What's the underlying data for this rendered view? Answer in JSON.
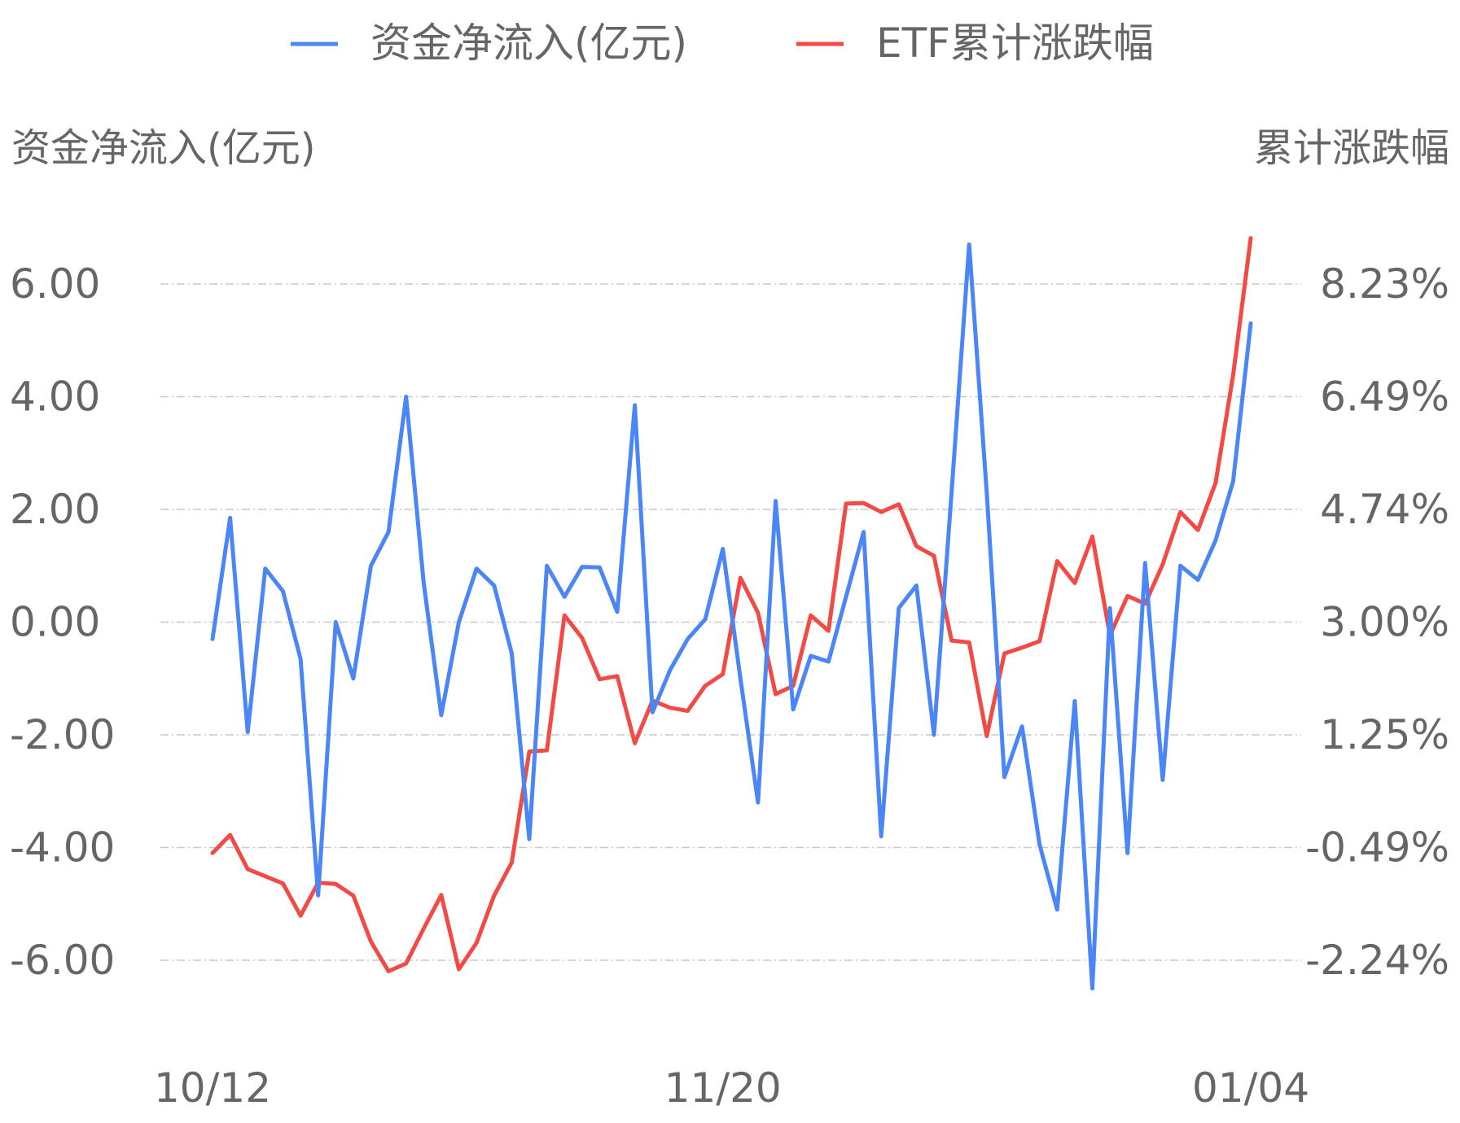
{
  "chart_data": {
    "type": "line",
    "legend_position": "top-center",
    "legend": [
      "资金净流入(亿元)",
      "ETF累计涨跌幅"
    ],
    "y_left_title": "资金净流入(亿元)",
    "y_right_title": "累计涨跌幅",
    "y_left_ticks": [
      "6.00",
      "4.00",
      "2.00",
      "0.00",
      "-2.00",
      "-4.00",
      "-6.00"
    ],
    "y_right_ticks": [
      "8.23%",
      "6.49%",
      "4.74%",
      "3.00%",
      "1.25%",
      "-0.49%",
      "-2.24%"
    ],
    "y_left_range": [
      -6,
      6
    ],
    "y_right_range": [
      -2.24,
      8.23
    ],
    "x_tick_labels": [
      "10/12",
      "11/20",
      "01/04"
    ],
    "x_tick_indices": [
      0,
      29,
      59
    ],
    "grid": true,
    "colors": {
      "net_inflow": "#4a86f5",
      "cumulative": "#f24a44"
    },
    "series": [
      {
        "name": "资金净流入(亿元)",
        "axis": "left",
        "values": [
          -0.3,
          1.85,
          -1.95,
          0.95,
          0.55,
          -0.65,
          -4.85,
          0.0,
          -1.0,
          1.0,
          1.6,
          4.0,
          0.7,
          -1.65,
          0.0,
          0.95,
          0.65,
          -0.55,
          -3.85,
          1.0,
          0.45,
          0.98,
          0.97,
          0.18,
          3.85,
          -1.6,
          -0.85,
          -0.3,
          0.05,
          1.3,
          -1.0,
          -3.2,
          2.15,
          -1.55,
          -0.6,
          -0.7,
          0.45,
          1.6,
          -3.8,
          0.25,
          0.65,
          -2.0,
          2.3,
          6.7,
          2.3,
          -2.75,
          -1.85,
          -3.95,
          -5.1,
          -1.4,
          -6.5,
          0.25,
          -4.1,
          1.05,
          -2.8,
          1.0,
          0.75,
          1.45,
          2.5,
          5.3
        ]
      },
      {
        "name": "ETF累计涨跌幅",
        "axis": "right",
        "values": [
          -0.58,
          -0.3,
          -0.83,
          -0.94,
          -1.05,
          -1.55,
          -1.04,
          -1.06,
          -1.24,
          -1.95,
          -2.41,
          -2.29,
          -1.75,
          -1.23,
          -2.38,
          -1.97,
          -1.24,
          -0.73,
          0.99,
          1.01,
          3.1,
          2.75,
          2.11,
          2.16,
          1.12,
          1.78,
          1.67,
          1.62,
          2.01,
          2.19,
          3.68,
          3.14,
          1.88,
          2.01,
          3.1,
          2.86,
          4.83,
          4.84,
          4.7,
          4.82,
          4.17,
          4.02,
          2.71,
          2.68,
          1.23,
          2.51,
          2.6,
          2.7,
          3.94,
          3.6,
          4.32,
          2.79,
          3.4,
          3.28,
          3.89,
          4.7,
          4.42,
          5.15,
          6.82,
          8.94
        ]
      }
    ]
  }
}
